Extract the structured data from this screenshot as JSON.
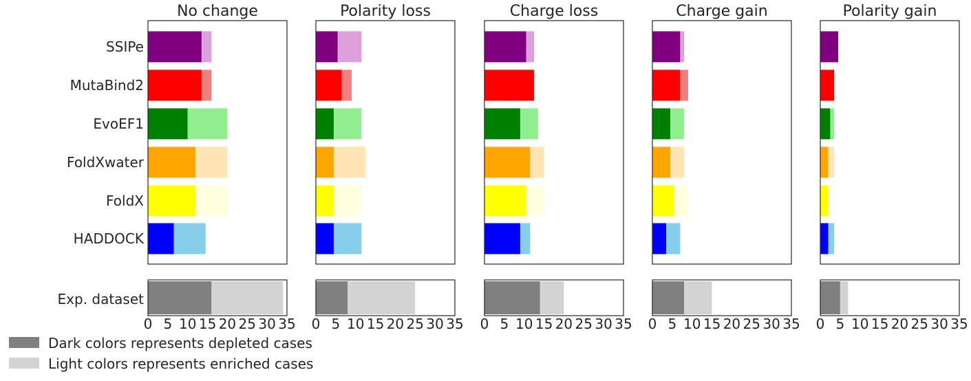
{
  "chart_data": {
    "type": "bar",
    "orientation": "horizontal",
    "stacked": true,
    "methods": [
      "SSIPe",
      "MutaBind2",
      "EvoEF1",
      "FoldXwater",
      "FoldX",
      "HADDOCK"
    ],
    "dataset_label": "Exp. dataset",
    "xlim": [
      0,
      35
    ],
    "xticks": [
      "0",
      "5",
      "10",
      "15",
      "20",
      "25",
      "30",
      "35"
    ],
    "grid": false,
    "legend_placement": "bottom-left",
    "legend": [
      {
        "label": "Dark colors represents depleted cases",
        "color": "#808080"
      },
      {
        "label": "Light colors represents enriched cases",
        "color": "#d3d3d3"
      }
    ],
    "colors": {
      "SSIPe": {
        "dark": "#800080",
        "light": "#dda0dd"
      },
      "MutaBind2": {
        "dark": "#ff0000",
        "light": "#f08080"
      },
      "EvoEF1": {
        "dark": "#008000",
        "light": "#90ee90"
      },
      "FoldXwater": {
        "dark": "#ffa500",
        "light": "#ffe4b5"
      },
      "FoldX": {
        "dark": "#ffff00",
        "light": "#ffffe0"
      },
      "HADDOCK": {
        "dark": "#0000ff",
        "light": "#87ceeb"
      },
      "dataset": {
        "dark": "#808080",
        "light": "#d3d3d3"
      }
    },
    "panels": [
      {
        "title": "No change",
        "depleted": [
          13.5,
          13.5,
          10,
          12,
          12,
          6.5
        ],
        "enriched": [
          2.5,
          2.5,
          10,
          8,
          8,
          8
        ],
        "dataset": {
          "depleted": 16,
          "enriched": 18
        }
      },
      {
        "title": "Polarity loss",
        "depleted": [
          5.5,
          6.5,
          4.5,
          4.5,
          4.5,
          4.5
        ],
        "enriched": [
          6,
          2.5,
          7,
          8,
          7,
          7
        ],
        "dataset": {
          "depleted": 8,
          "enriched": 17
        }
      },
      {
        "title": "Charge loss",
        "depleted": [
          10.5,
          12.5,
          9,
          11.5,
          10.5,
          9
        ],
        "enriched": [
          2,
          0,
          4.5,
          3.5,
          4.5,
          2.5
        ],
        "dataset": {
          "depleted": 14,
          "enriched": 6
        }
      },
      {
        "title": "Charge gain",
        "depleted": [
          7,
          7,
          4.5,
          4.5,
          5.5,
          3.5
        ],
        "enriched": [
          1,
          2,
          3.5,
          3.5,
          3.5,
          3.5
        ],
        "dataset": {
          "depleted": 8,
          "enriched": 7
        }
      },
      {
        "title": "Polarity gain",
        "depleted": [
          4.5,
          3.5,
          2.5,
          2,
          2,
          2
        ],
        "enriched": [
          0,
          0,
          1,
          1.5,
          0.5,
          1.5
        ],
        "dataset": {
          "depleted": 5,
          "enriched": 2
        }
      }
    ]
  }
}
